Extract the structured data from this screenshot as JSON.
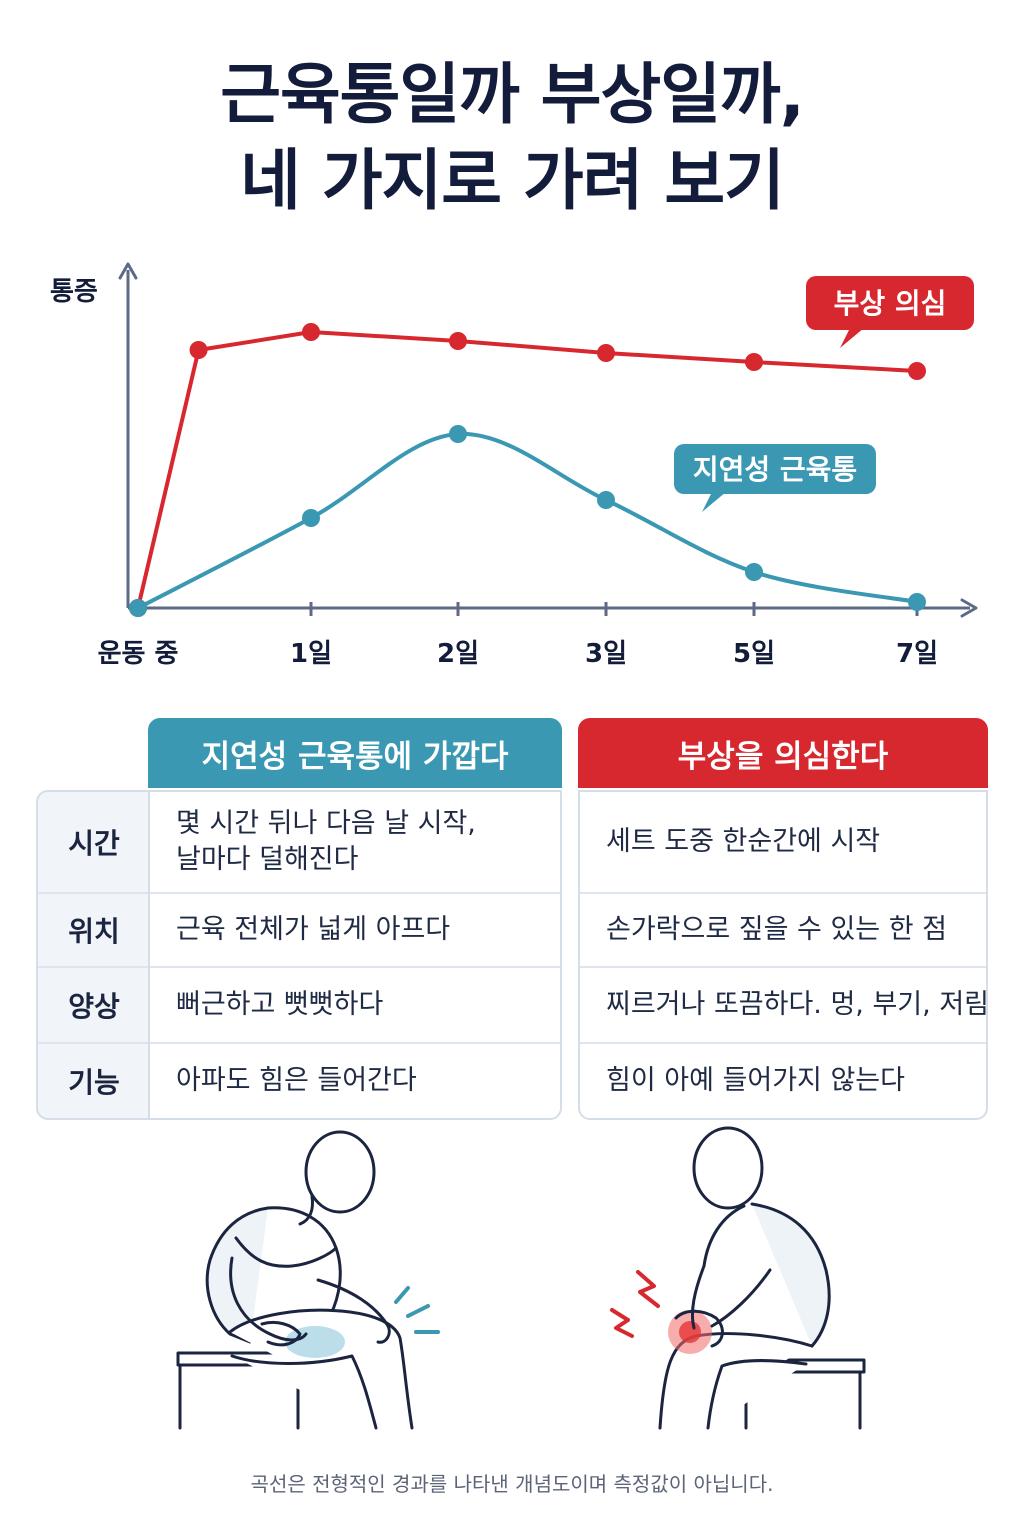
{
  "title": {
    "line1": "근육통일까 부상일까,",
    "line2": "네 가지로 가려 보기"
  },
  "colors": {
    "injury": "#d8282f",
    "soreness": "#3a98b3",
    "text": "#131c3a",
    "axis": "#5c6a86"
  },
  "chart_data": {
    "type": "line",
    "ylabel": "통증",
    "xlabel": "",
    "x": [
      "운동 중",
      "1일",
      "2일",
      "3일",
      "5일",
      "7일"
    ],
    "series": [
      {
        "name": "부상 의심",
        "points": [
          [
            0,
            0
          ],
          [
            0.35,
            0.86
          ],
          [
            1,
            0.92
          ],
          [
            2,
            0.89
          ],
          [
            3,
            0.85
          ],
          [
            4,
            0.82
          ],
          [
            5,
            0.79
          ]
        ]
      },
      {
        "name": "지연성 근육통",
        "points": [
          [
            0,
            0
          ],
          [
            1,
            0.3
          ],
          [
            2,
            0.58
          ],
          [
            3,
            0.36
          ],
          [
            4,
            0.12
          ],
          [
            5,
            0.02
          ]
        ]
      }
    ],
    "grid": false,
    "legend": "inline callouts"
  },
  "tables": {
    "categories": [
      "시간",
      "위치",
      "양상",
      "기능"
    ],
    "soreness": {
      "header": "지연성 근육통에 가깝다",
      "rows": [
        [
          "몇 시간 뒤나 다음 날 시작,",
          "날마다 덜해진다"
        ],
        [
          "근육 전체가 넓게 아프다"
        ],
        [
          "뻐근하고 뻣뻣하다"
        ],
        [
          "아파도 힘은 들어간다"
        ]
      ]
    },
    "injury": {
      "header": "부상을 의심한다",
      "rows": [
        [
          "세트 도중 한순간에 시작"
        ],
        [
          "손가락으로 짚을 수 있는 한 점"
        ],
        [
          "찌르거나 또끔하다. 멍, 부기, 저림"
        ],
        [
          "힘이 아예 들어가지 않는다"
        ]
      ]
    }
  },
  "footnote": "곡선은 전형적인 경과를 나타낸 개념도이며 측정값이 아닙니다."
}
